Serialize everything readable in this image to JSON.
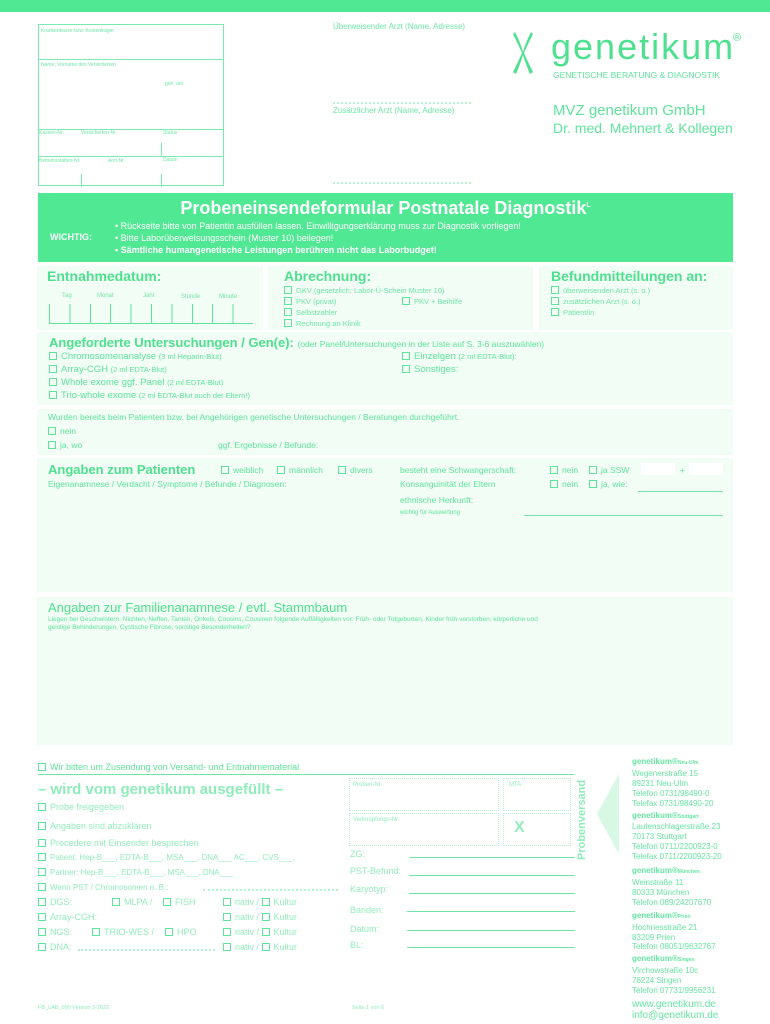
{
  "colors": {
    "brand": "#50e893",
    "text": "#5fe49c",
    "panel": "#f1fdf5"
  },
  "header_box": {
    "kostentraeger": "Krankenkasse bzw. Kostenträger",
    "name": "Name, Vorname des Versicherten",
    "geb": "geb. am",
    "kassen_nr": "Kassen-Nr.",
    "versicherten_nr": "Versicherten-Nr.",
    "status": "Status",
    "betriebsstaetten_nr": "Betriebsstätten-Nr.",
    "arzt_nr": "Arzt-Nr.",
    "datum": "Datum"
  },
  "ueberweisender": "Überweisender Arzt (Name, Adresse)",
  "zusaetzlicher": "Zusätzlicher Arzt (Name, Adresse)",
  "logo": {
    "name": "genetikum",
    "reg": "®",
    "subtitle": "GENETISCHE BERATUNG & DIAGNOSTIK",
    "company": "MVZ genetikum GmbH",
    "doctors": "Dr. med. Mehnert & Kollegen"
  },
  "banner": {
    "title": "Probeneinsendeformular Postnatale Diagnostik",
    "sup": "L",
    "wichtig": "WICHTIG:",
    "bullets": [
      "• Rückseite bitte von Patientin ausfüllen lassen. Einwilligungserklärung muss zur Diagnostik vorliegen!",
      "• Bitte Laborüberweisungsschein (Muster 10) beilegen!",
      "• Sämtliche humangenetische Leistungen berühren nicht das Laborbudget!"
    ]
  },
  "entnahme": {
    "title": "Entnahmedatum:",
    "fields": [
      "Tag",
      "Monat",
      "Jahr",
      "Stunde",
      "Minute"
    ]
  },
  "abrechnung": {
    "title": "Abrechnung:",
    "options": [
      "GKV (gesetzlich; Labor-Ü-Schein Muster 10)",
      "PKV (privat)",
      "PKV + Beihilfe",
      "Selbstzahler",
      "Rechnung an Klinik"
    ]
  },
  "befund": {
    "title": "Befundmitteilungen an:",
    "options": [
      "überweisenden Arzt (s. o.)",
      "zusätzlichen Arzt (s. o.)",
      "Patient/in"
    ]
  },
  "untersuchungen": {
    "title": "Angeforderte Untersuchungen / Gen(e):",
    "note": "(oder Panel/Untersuchungen in der Liste auf S. 3-6 auszuwählen)",
    "left": [
      {
        "label": "Chromosomenanalyse",
        "detail": "(3 ml Heparin-Blut)"
      },
      {
        "label": "Array-CGH",
        "detail": "(2 ml EDTA-Blut)"
      },
      {
        "label": "Whole exome ggf. Panel",
        "detail": "(2 ml EDTA-Blut)"
      },
      {
        "label": "Trio-whole exome",
        "detail": "(2 ml EDTA-Blut auch der Eltern!)"
      }
    ],
    "right": [
      {
        "label": "Einzelgen",
        "detail": "(2 ml EDTA-Blut):"
      },
      {
        "label": "Sonstiges:",
        "detail": ""
      }
    ]
  },
  "vorunters": {
    "question": "Wurden bereits beim Patienten bzw. bei Angehörigen genetische Untersuchungen / Beratungen durchgeführt.",
    "nein": "nein",
    "ja": "ja, wo",
    "ergebnisse": "ggf. Ergebnisse / Befunde:"
  },
  "patient": {
    "title": "Angaben zum Patienten",
    "sex": [
      "weiblich",
      "männlich",
      "divers"
    ],
    "eigen": "Eigenanamnese / Verdacht / Symptome / Befunde / Diagnosen:",
    "schwanger": "besteht eine Schwangerschaft:",
    "nein": "nein",
    "ja_ssw": "ja SSW",
    "plus": "+",
    "konsang": "Konsanguinität der Eltern",
    "ja_wie": "ja, wie:",
    "herkunft": "ethnische Herkunft:",
    "wichtig": "wichtig für Auswertung"
  },
  "familie": {
    "title": "Angaben zur Familienanamnese / evtl. Stammbaum",
    "text1": "Liegen bei Geschwistern, Nichten, Neffen, Tanten, Onkels, Cousins, Cousinen folgende Auffälligkeiten vor: Früh- oder Totgeburten, Kinder früh verstorben, körperliche und",
    "text2": "geistige Behinderungen, Cystische Fibrose, sonstige Besonderheiten?"
  },
  "versand": "Wir bitten um Zusendung von Versand- und Entnahmematerial",
  "intern": {
    "title": "– wird vom genetikum ausgefüllt –",
    "items": [
      "Probe freigegeben",
      "Angaben sind abzuklären",
      "Procedere mit Einsender besprechen",
      "Patient: Hep-B___, EDTA-B___, MSA___, DNA___ AC___, CVS___,",
      "Partner: Hep-B___, EDTA-B___, MSA___, DNA___",
      "Wenn PST / Chromosomen o. B.:"
    ],
    "dgs": "DGS:",
    "mlpa": "MLPA /",
    "fish": "FISH",
    "array": "Array-CGH:",
    "ngs": "NGS:",
    "trio": "TRIO-WES /",
    "hpo": "HPO",
    "dna": "DNA:",
    "nativ": "nativ /",
    "kultur": "Kultur",
    "proben_nr": "Proben-Nr.",
    "mta": "MTA",
    "verkn": "Verknüpfungs-Nr.",
    "x": "X",
    "fields": [
      "ZG:",
      "PST-Befund:",
      "Karyotyp:",
      "Banden:",
      "Datum:",
      "BL:"
    ]
  },
  "probenversand": "Probenversand",
  "locations": [
    {
      "name": "genetikum®",
      "city": "Neu-Ulm",
      "lines": [
        "Wegenerstraße 15",
        "89231 Neu-Ulm",
        "Telefon 0731/98490-0",
        "Telefax 0731/98490-20"
      ]
    },
    {
      "name": "genetikum®",
      "city": "Stuttgart",
      "lines": [
        "Lautenschlagerstraße 23",
        "70173 Stuttgart",
        "Telefon 0711/2200923-0",
        "Telefax 0711/2200923-20"
      ]
    },
    {
      "name": "genetikum®",
      "city": "München",
      "lines": [
        "Weinstraße 11",
        "80333 München",
        "Telefon 089/24207670"
      ]
    },
    {
      "name": "genetikum®",
      "city": "Prien",
      "lines": [
        "Hochriesstraße 21",
        "83209 Prien",
        "Telefon 08051/9632767"
      ]
    },
    {
      "name": "genetikum®",
      "city": "Singen",
      "lines": [
        "Virchowstraße 10c",
        "78224 Singen",
        "Telefon 07731/9956231"
      ]
    }
  ],
  "web": "www.genetikum.de",
  "email": "info@genetikum.de",
  "footer": {
    "version": "FB_LAB_090 Version 3-2022",
    "page": "Seite 1 von 6"
  }
}
